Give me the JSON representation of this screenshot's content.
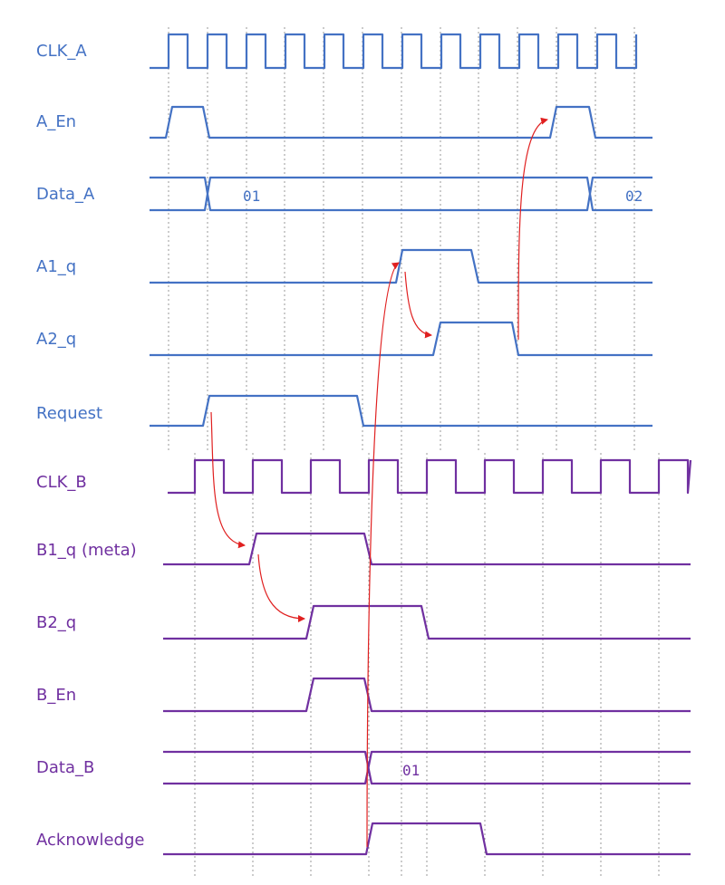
{
  "colors": {
    "domain_a": "#4472c4",
    "domain_b": "#7030a0",
    "arrow": "#e02020",
    "grid": "#9a9a9a"
  },
  "signals": [
    {
      "id": "clk_a",
      "label": "CLK_A",
      "domain": "a",
      "kind": "clock"
    },
    {
      "id": "a_en",
      "label": "A_En",
      "domain": "a",
      "kind": "pulse"
    },
    {
      "id": "data_a",
      "label": "Data_A",
      "domain": "a",
      "kind": "bus",
      "values": [
        "01",
        "02"
      ]
    },
    {
      "id": "a1_q",
      "label": "A1_q",
      "domain": "a",
      "kind": "pulse"
    },
    {
      "id": "a2_q",
      "label": "A2_q",
      "domain": "a",
      "kind": "pulse"
    },
    {
      "id": "request",
      "label": "Request",
      "domain": "a",
      "kind": "pulse"
    },
    {
      "id": "clk_b",
      "label": "CLK_B",
      "domain": "b",
      "kind": "clock"
    },
    {
      "id": "b1_q",
      "label": "B1_q (meta)",
      "domain": "b",
      "kind": "pulse"
    },
    {
      "id": "b2_q",
      "label": "B2_q",
      "domain": "b",
      "kind": "pulse"
    },
    {
      "id": "b_en",
      "label": "B_En",
      "domain": "b",
      "kind": "pulse"
    },
    {
      "id": "data_b",
      "label": "Data_B",
      "domain": "b",
      "kind": "bus",
      "values": [
        "01"
      ]
    },
    {
      "id": "acknowledge",
      "label": "Acknowledge",
      "domain": "b",
      "kind": "pulse"
    }
  ]
}
